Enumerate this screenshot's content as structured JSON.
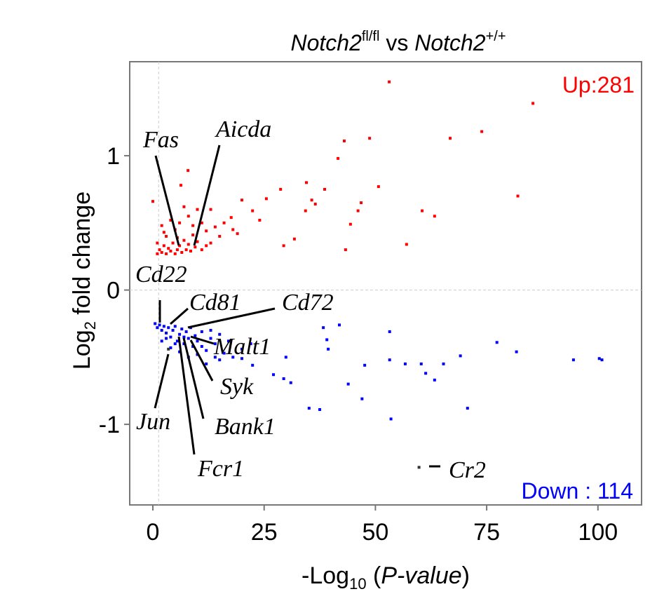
{
  "chart_data": {
    "type": "scatter",
    "title": [
      "Notch2",
      "fl/fl",
      " vs ",
      "Notch2",
      "+/+"
    ],
    "x_label": [
      "-Log",
      "10",
      " (",
      "P-value",
      ")"
    ],
    "y_label": [
      "Log",
      "2",
      " fold change"
    ],
    "xlim": [
      -5.2,
      109.8
    ],
    "ylim": [
      -1.6,
      1.7
    ],
    "xticks": [
      0,
      25,
      50,
      75,
      100
    ],
    "yticks": [
      -1,
      0,
      1
    ],
    "hlines": [
      0
    ],
    "vlines": [
      1.3
    ],
    "counts": [
      {
        "text": "Up:281",
        "color": "#ff0000"
      },
      {
        "text": "Down : 114",
        "color": "#0000ff"
      }
    ],
    "annotations": [
      "Fas",
      "Aicda",
      "Cd22",
      "Cd81",
      "Cd72",
      "Malt1",
      "Syk",
      "Bank1",
      "Jun",
      "Fcr1",
      "Cr2"
    ],
    "series": [
      {
        "color": "#ff0000",
        "x": [
          53.1,
          85.4,
          73.9,
          66.8,
          48.7,
          43.0,
          41.6,
          7.9,
          34.5,
          38.6,
          50.7,
          28.7,
          82.0,
          6.3,
          0,
          20,
          25.5,
          35.7,
          36.5,
          46.8,
          46.1,
          60.5,
          63.3,
          34.3,
          22.4,
          17.6,
          44.4,
          57,
          43.3,
          31.8,
          29.4,
          1,
          1.5,
          2,
          2.5,
          3,
          3.5,
          4,
          4.5,
          5,
          5.5,
          6,
          6.5,
          7,
          7.5,
          8,
          8.5,
          9,
          9.5,
          10,
          11,
          12,
          13,
          14,
          15,
          16,
          18,
          3,
          5,
          6,
          8,
          4,
          2,
          1,
          10,
          7,
          12,
          11,
          13,
          9,
          5.5,
          19,
          24,
          2.5
        ],
        "values": [
          1.55,
          1.39,
          1.18,
          1.13,
          1.13,
          1.11,
          0.98,
          0.89,
          0.8,
          0.75,
          0.77,
          0.75,
          0.7,
          0.78,
          0.66,
          0.67,
          0.68,
          0.67,
          0.64,
          0.65,
          0.59,
          0.59,
          0.55,
          0.59,
          0.59,
          0.54,
          0.49,
          0.34,
          0.3,
          0.38,
          0.33,
          0.27,
          0.3,
          0.28,
          0.33,
          0.27,
          0.31,
          0.29,
          0.35,
          0.27,
          0.3,
          0.33,
          0.28,
          0.37,
          0.3,
          0.34,
          0.29,
          0.41,
          0.32,
          0.36,
          0.3,
          0.44,
          0.35,
          0.47,
          0.4,
          0.5,
          0.45,
          0.4,
          0.45,
          0.5,
          0.55,
          0.52,
          0.48,
          0.35,
          0.6,
          0.62,
          0.33,
          0.5,
          0.6,
          0.48,
          0.39,
          0.42,
          0.52,
          0.43
        ]
      },
      {
        "color": "#0000ff",
        "x": [
          41.9,
          38.3,
          53.2,
          39.1,
          39.4,
          77.3,
          81.7,
          69.1,
          65.3,
          53.2,
          56.7,
          60.3,
          47.6,
          61.3,
          63.3,
          94.5,
          100.3,
          100.9,
          29.9,
          29.4,
          31,
          43.9,
          47,
          35.1,
          37.5,
          53.5,
          70.7,
          27.1,
          22.4,
          20,
          0.5,
          1,
          1.5,
          2,
          2.5,
          3,
          3.5,
          4,
          4.5,
          5,
          5.5,
          6,
          6.5,
          7,
          7.5,
          8,
          8.5,
          9,
          9.5,
          10,
          11,
          12,
          13,
          14,
          15,
          16,
          17,
          18,
          2,
          4,
          6,
          8,
          10,
          12,
          14,
          7,
          11,
          13,
          15,
          5,
          3,
          20,
          22
        ],
        "values": [
          -0.26,
          -0.28,
          -0.31,
          -0.37,
          -0.44,
          -0.39,
          -0.46,
          -0.49,
          -0.55,
          -0.52,
          -0.55,
          -0.55,
          -0.56,
          -0.62,
          -0.67,
          -0.52,
          -0.51,
          -0.52,
          -0.5,
          -0.66,
          -0.69,
          -0.7,
          -0.81,
          -0.88,
          -0.89,
          -0.96,
          -0.88,
          -0.63,
          -0.56,
          -0.51,
          -0.25,
          -0.28,
          -0.26,
          -0.3,
          -0.27,
          -0.32,
          -0.28,
          -0.35,
          -0.3,
          -0.27,
          -0.38,
          -0.33,
          -0.29,
          -0.4,
          -0.31,
          -0.36,
          -0.28,
          -0.42,
          -0.34,
          -0.38,
          -0.31,
          -0.45,
          -0.36,
          -0.4,
          -0.33,
          -0.47,
          -0.38,
          -0.5,
          -0.38,
          -0.43,
          -0.46,
          -0.5,
          -0.48,
          -0.55,
          -0.5,
          -0.35,
          -0.42,
          -0.3,
          -0.52,
          -0.4,
          -0.36,
          -0.44,
          -0.4
        ]
      },
      {
        "color": "#333333",
        "x": [
          3.5,
          59.8
        ],
        "values": [
          -0.44,
          -1.32
        ]
      }
    ]
  }
}
